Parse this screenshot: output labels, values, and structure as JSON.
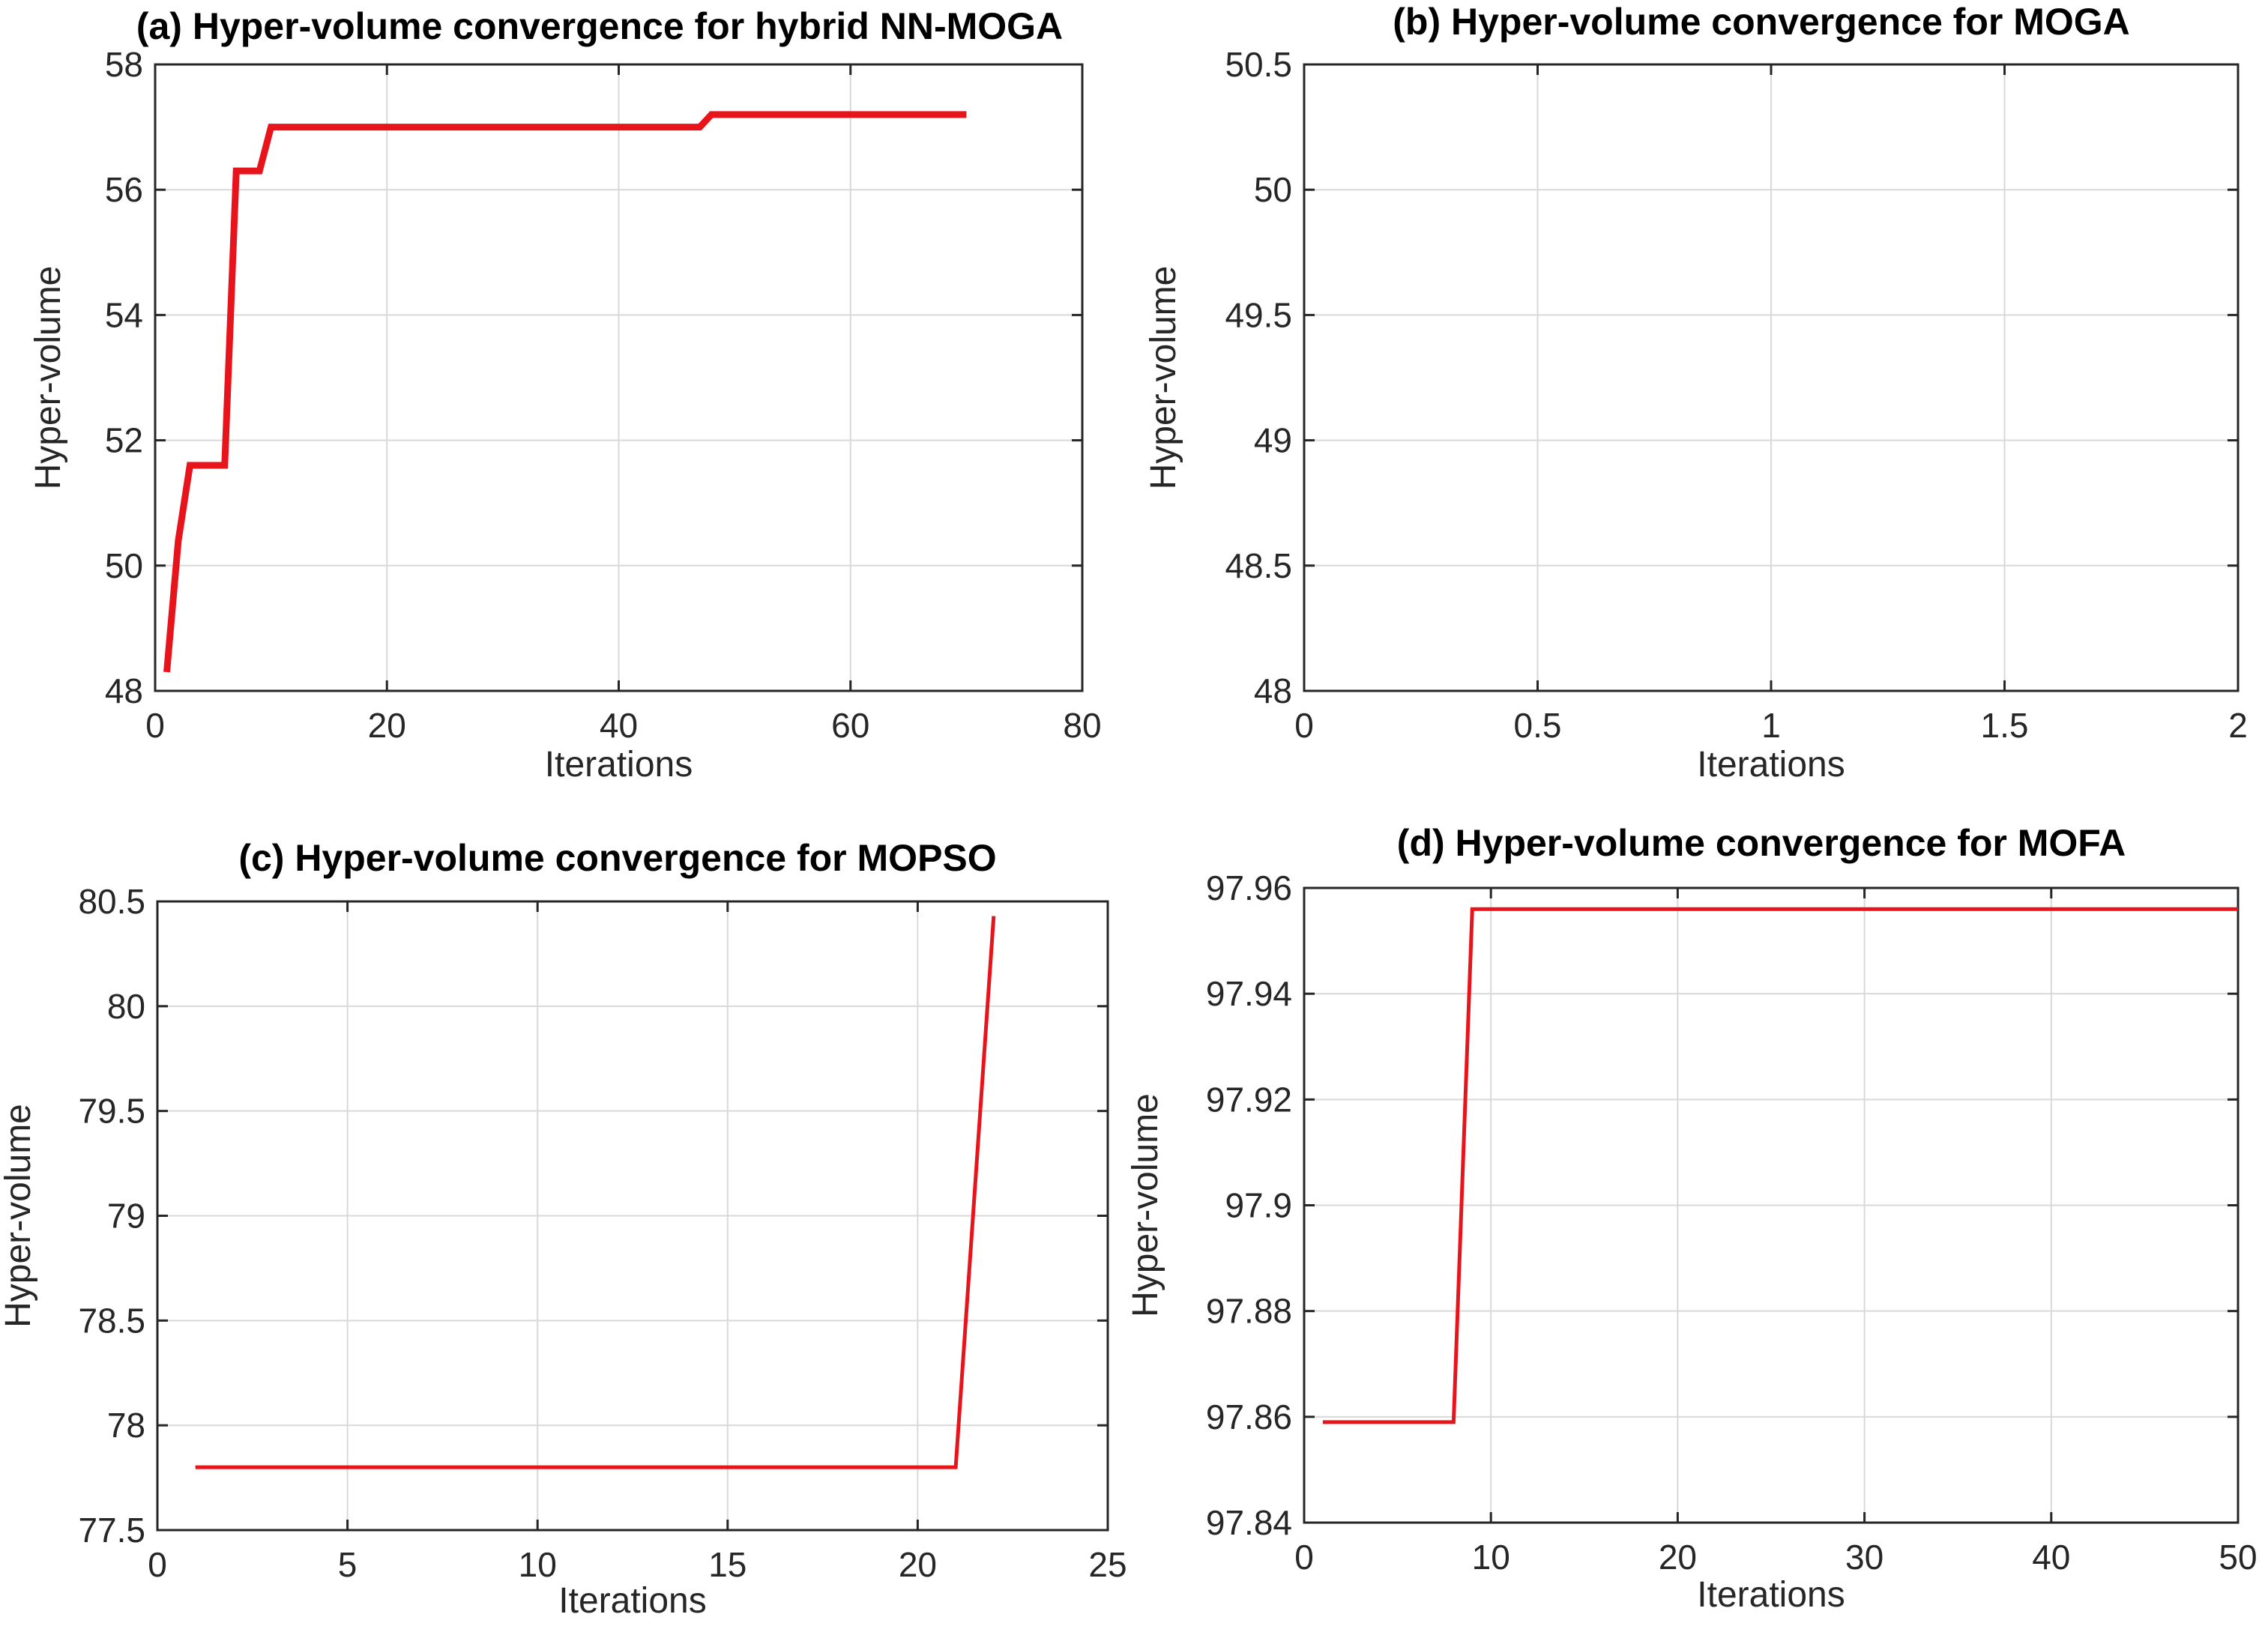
{
  "chart_data": [
    {
      "type": "line",
      "title": "(a) Hyper-volume convergence for hybrid NN-MOGA",
      "xlabel": "Iterations",
      "ylabel": "Hyper-volume",
      "xlim": [
        0,
        80
      ],
      "ylim": [
        48,
        58
      ],
      "xticks": [
        0,
        20,
        40,
        60,
        80
      ],
      "xtick_labels": [
        "0",
        "20",
        "40",
        "60",
        "80"
      ],
      "yticks": [
        48,
        50,
        52,
        54,
        56,
        58
      ],
      "ytick_labels": [
        "48",
        "50",
        "52",
        "54",
        "56",
        "58"
      ],
      "grid": true,
      "series": [
        {
          "color": "#e8141b",
          "line_weight": "thick",
          "x": [
            1,
            2,
            3,
            4,
            5,
            6,
            7,
            8,
            9,
            10,
            20,
            30,
            40,
            47,
            48,
            60,
            70
          ],
          "y": [
            48.3,
            50.4,
            51.6,
            51.6,
            51.6,
            51.6,
            56.3,
            56.3,
            56.3,
            57.0,
            57.0,
            57.0,
            57.0,
            57.0,
            57.2,
            57.2,
            57.2
          ]
        }
      ]
    },
    {
      "type": "line",
      "title": "(b) Hyper-volume convergence for MOGA",
      "xlabel": "Iterations",
      "ylabel": "Hyper-volume",
      "xlim": [
        0,
        2
      ],
      "ylim": [
        48,
        50.5
      ],
      "xticks": [
        0,
        0.5,
        1,
        1.5,
        2
      ],
      "xtick_labels": [
        "0",
        "0.5",
        "1",
        "1.5",
        "2"
      ],
      "yticks": [
        48,
        48.5,
        49,
        49.5,
        50,
        50.5
      ],
      "ytick_labels": [
        "48",
        "48.5",
        "49",
        "49.5",
        "50",
        "50.5"
      ],
      "grid": true,
      "series": []
    },
    {
      "type": "line",
      "title": "(c) Hyper-volume convergence for MOPSO",
      "xlabel": "Iterations",
      "ylabel": "Hyper-volume",
      "xlim": [
        0,
        25
      ],
      "ylim": [
        77.5,
        80.5
      ],
      "xticks": [
        0,
        5,
        10,
        15,
        20,
        25
      ],
      "xtick_labels": [
        "0",
        "5",
        "10",
        "15",
        "20",
        "25"
      ],
      "yticks": [
        77.5,
        78,
        78.5,
        79,
        79.5,
        80,
        80.5
      ],
      "ytick_labels": [
        "77.5",
        "78",
        "78.5",
        "79",
        "79.5",
        "80",
        "80.5"
      ],
      "grid": true,
      "series": [
        {
          "color": "#e8141b",
          "line_weight": "normal",
          "x": [
            1,
            5,
            10,
            15,
            20,
            21,
            22
          ],
          "y": [
            77.8,
            77.8,
            77.8,
            77.8,
            77.8,
            77.8,
            80.43
          ]
        }
      ]
    },
    {
      "type": "line",
      "title": "(d) Hyper-volume convergence for MOFA",
      "xlabel": "Iterations",
      "ylabel": "Hyper-volume",
      "xlim": [
        0,
        50
      ],
      "ylim": [
        97.84,
        97.96
      ],
      "xticks": [
        0,
        10,
        20,
        30,
        40,
        50
      ],
      "xtick_labels": [
        "0",
        "10",
        "20",
        "30",
        "40",
        "50"
      ],
      "yticks": [
        97.84,
        97.86,
        97.88,
        97.9,
        97.92,
        97.94,
        97.96
      ],
      "ytick_labels": [
        "97.84",
        "97.86",
        "97.88",
        "97.9",
        "97.92",
        "97.94",
        "97.96"
      ],
      "grid": true,
      "series": [
        {
          "color": "#e8141b",
          "line_weight": "normal",
          "x": [
            1,
            8,
            9,
            20,
            30,
            40,
            50
          ],
          "y": [
            97.859,
            97.859,
            97.956,
            97.956,
            97.956,
            97.956,
            97.956
          ]
        }
      ]
    }
  ]
}
